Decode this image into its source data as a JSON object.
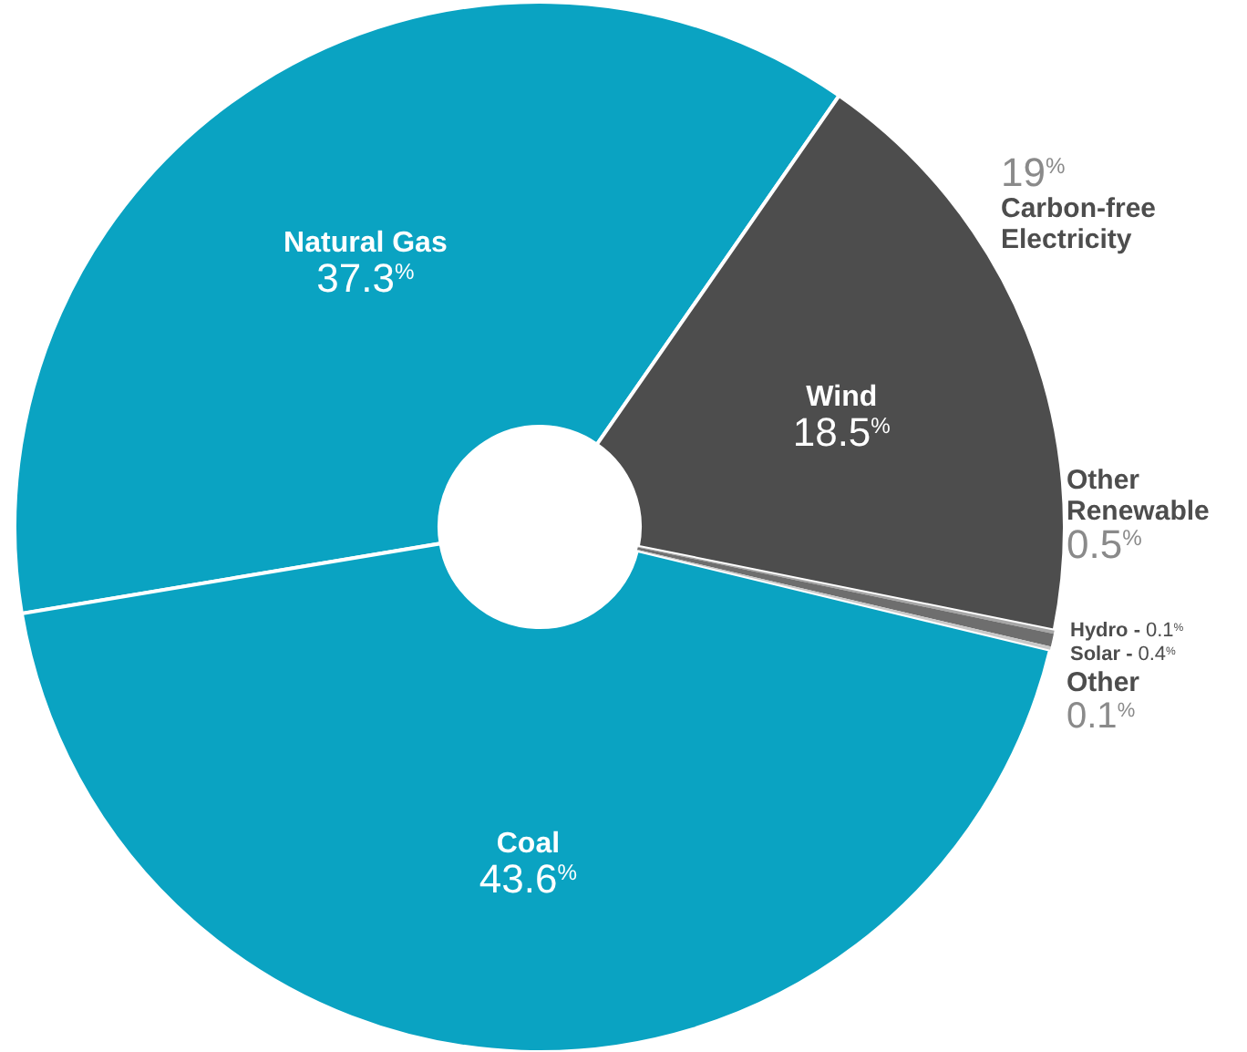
{
  "chart_data": {
    "type": "donut",
    "categories": [
      "Natural Gas",
      "Wind",
      "Hydro -",
      "Solar -",
      "Other",
      "Coal"
    ],
    "values": [
      37.3,
      18.5,
      0.1,
      0.4,
      0.1,
      43.6
    ],
    "colors": [
      "#0aa3c2",
      "#4d4d4d",
      "#a6a6a6",
      "#6e6e6e",
      "#c8c8c8",
      "#0aa3c2"
    ],
    "value_labels": [
      "37.3$^{%}$",
      "18.5$^{%}$",
      "0.1$^{%}$",
      "0.4$^{%}$",
      "0.1$^{%}$",
      "43.6$^{%}$"
    ],
    "annotations": [
      "19$^{%}$\nCarbon-free\nElectricity",
      "Other\nRenewable\n0.5$^{%}$"
    ]
  }
}
